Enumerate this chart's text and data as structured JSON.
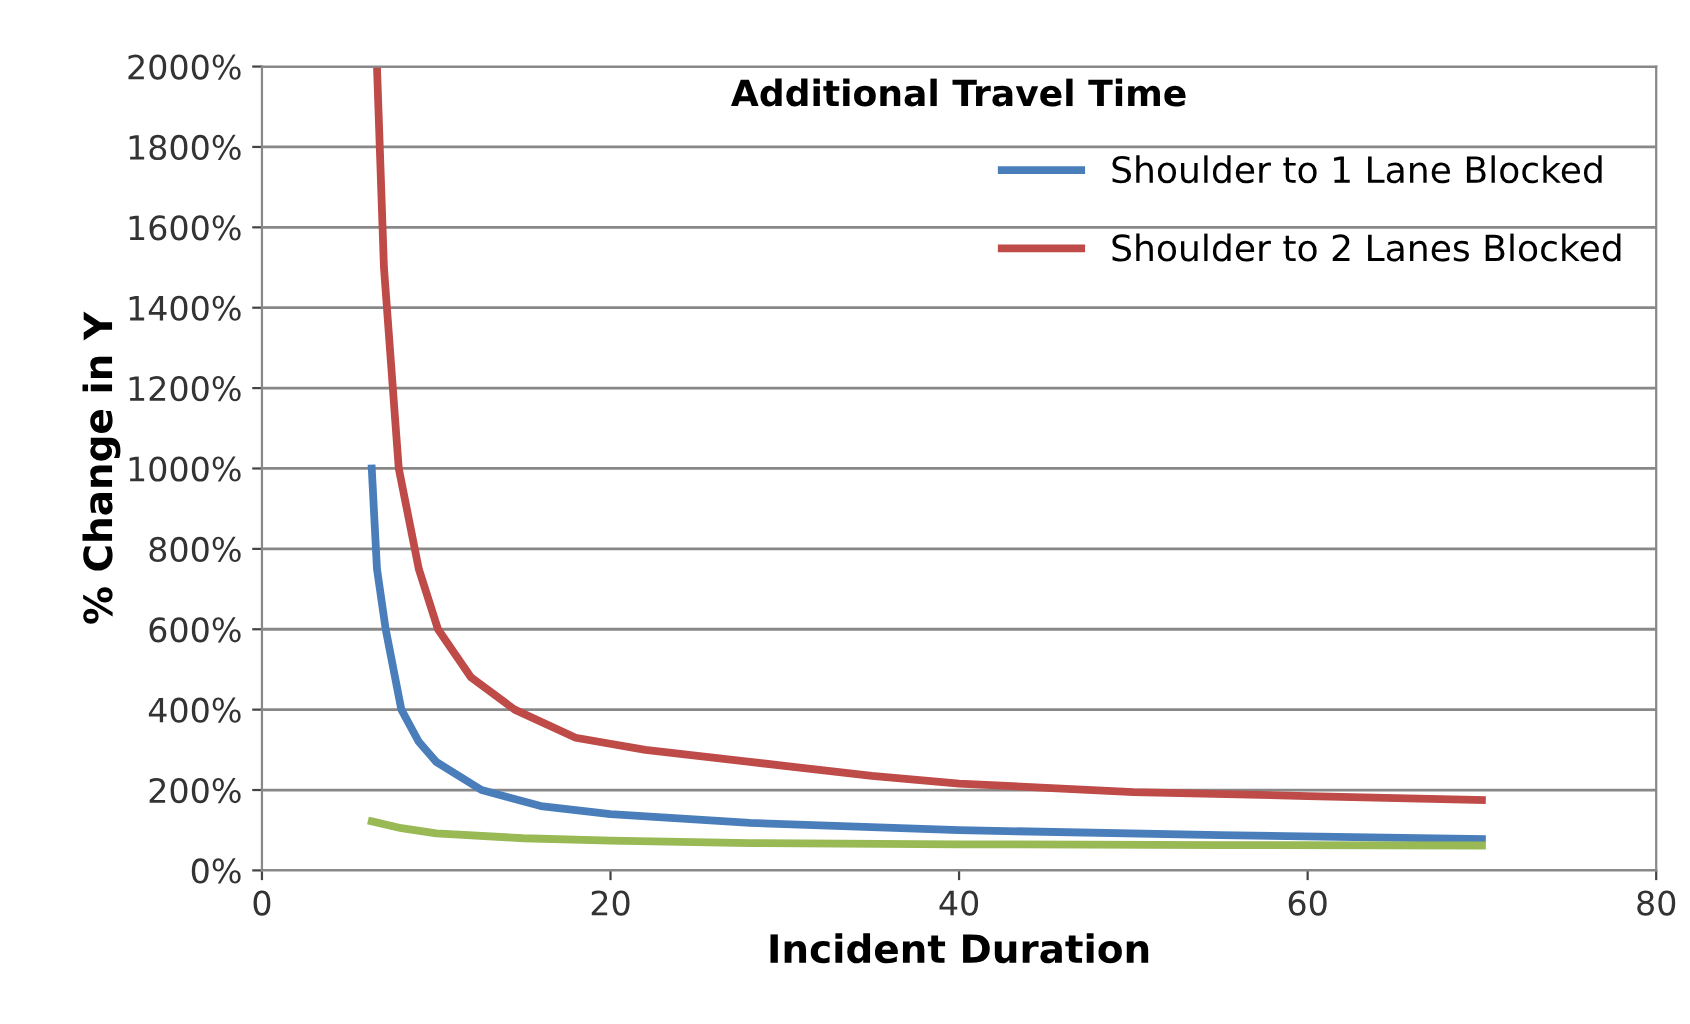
{
  "chart_data": {
    "type": "line",
    "title": "Additional Travel Time",
    "xlabel": "Incident Duration",
    "ylabel": "% Change in Y",
    "xlim": [
      0,
      80
    ],
    "xticks": [
      0,
      20,
      40,
      60,
      80
    ],
    "ylim": [
      0,
      2000
    ],
    "yticks": [
      {
        "value": 0,
        "label": "0%"
      },
      {
        "value": 200,
        "label": "200%"
      },
      {
        "value": 400,
        "label": "400%"
      },
      {
        "value": 600,
        "label": "600%"
      },
      {
        "value": 800,
        "label": "800%"
      },
      {
        "value": 1000,
        "label": "1000%"
      },
      {
        "value": 1200,
        "label": "1200%"
      },
      {
        "value": 1400,
        "label": "1400%"
      },
      {
        "value": 1600,
        "label": "1600%"
      },
      {
        "value": 1800,
        "label": "1800%"
      },
      {
        "value": 2000,
        "label": "2000%"
      }
    ],
    "grid": "y",
    "legend": "top right",
    "marker": "none",
    "line_style": "solid",
    "series": [
      {
        "name": "Shoulder to 1 Lane Blocked",
        "color": "#4a7ebb",
        "x": [
          6.3,
          6.6,
          7.1,
          8,
          9,
          10,
          12.6,
          16,
          20,
          28,
          40,
          55,
          70
        ],
        "values": [
          1000,
          750,
          600,
          400,
          320,
          270,
          200,
          160,
          140,
          118,
          100,
          88,
          78
        ]
      },
      {
        "name": "Shoulder to 2 Lanes Blocked",
        "color": "#be4b48",
        "x": [
          6.6,
          7,
          7.85,
          9,
          10.1,
          12,
          14.5,
          18,
          22,
          28,
          35,
          40,
          50,
          60,
          70
        ],
        "values": [
          2000,
          1500,
          1000,
          750,
          600,
          480,
          400,
          330,
          300,
          270,
          235,
          216,
          195,
          185,
          175
        ]
      },
      {
        "color": "#98b954",
        "x": [
          6.3,
          8,
          10,
          15,
          20,
          28,
          40,
          55,
          70
        ],
        "values": [
          122,
          105,
          92,
          80,
          74,
          68,
          65,
          63,
          62
        ]
      }
    ]
  }
}
